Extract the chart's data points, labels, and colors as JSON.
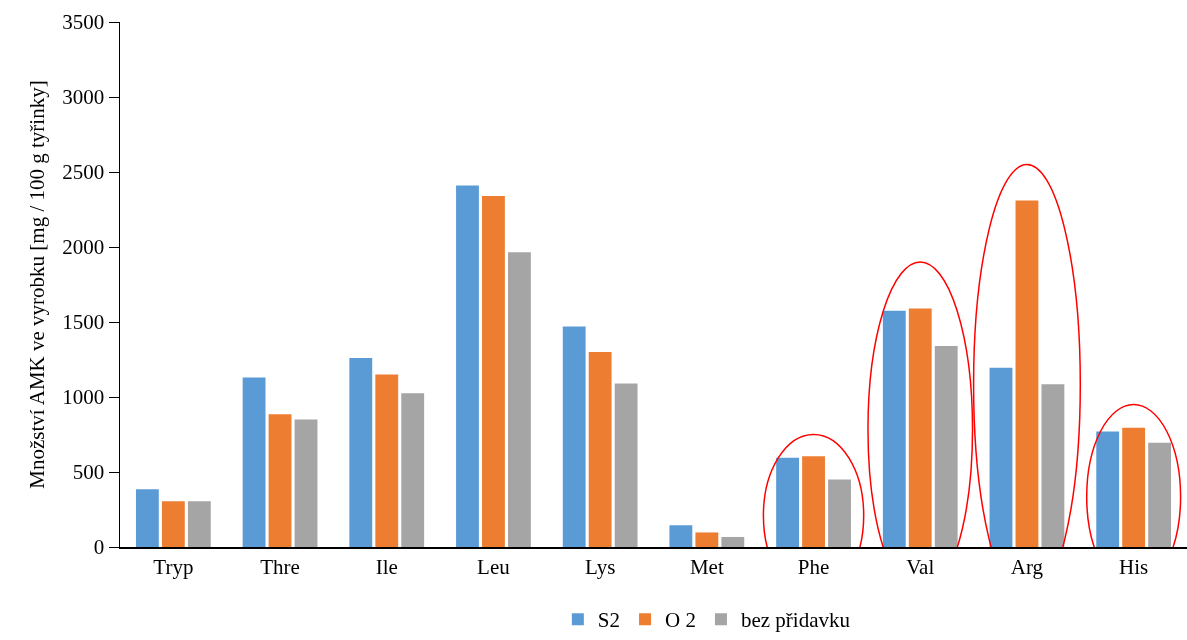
{
  "chart_data": {
    "type": "bar",
    "ylabel": "Množství AMK ve vyrobku [mg / 100 g tyřinky]",
    "categories": [
      "Tryp",
      "Thre",
      "Ile",
      "Leu",
      "Lys",
      "Met",
      "Phe",
      "Val",
      "Arg",
      "His"
    ],
    "series": [
      {
        "name": "S2",
        "color": "#5b9bd5",
        "values": [
          385,
          1130,
          1260,
          2410,
          1470,
          145,
          595,
          1575,
          1195,
          770
        ]
      },
      {
        "name": "O 2",
        "color": "#ed7d31",
        "values": [
          305,
          885,
          1150,
          2340,
          1300,
          97,
          605,
          1590,
          2310,
          795
        ]
      },
      {
        "name": "bez přidavku",
        "color": "#a5a5a5",
        "values": [
          305,
          850,
          1025,
          1965,
          1090,
          67,
          450,
          1340,
          1085,
          695
        ]
      }
    ],
    "ylim": [
      0,
      3500
    ],
    "yticks": [
      0,
      500,
      1000,
      1500,
      2000,
      2500,
      3000,
      3500
    ],
    "grid": false,
    "legend": "bottom"
  }
}
